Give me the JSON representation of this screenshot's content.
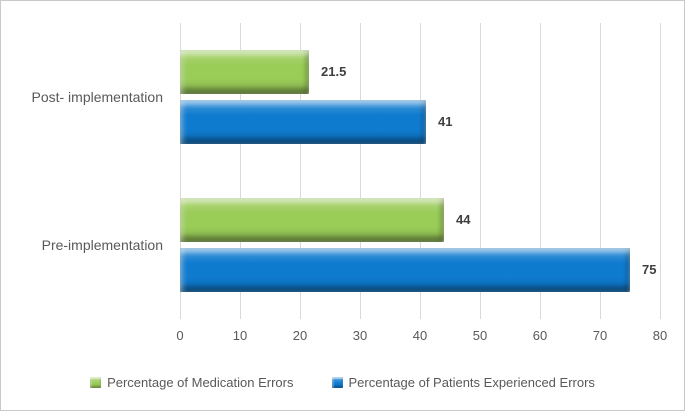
{
  "figure": {
    "background": "#ffffff",
    "border_color": "#c9c9c9"
  },
  "chart_data": {
    "type": "bar",
    "orientation": "horizontal",
    "title": "",
    "categories": [
      "Post- implementation",
      "Pre-implementation"
    ],
    "series": [
      {
        "name": "Percentage of Medication Errors",
        "color": "#9acc58",
        "values": [
          21.5,
          44
        ]
      },
      {
        "name": "Percentage of Patients Experienced Errors",
        "color": "#0f7bcf",
        "values": [
          41,
          75
        ]
      }
    ],
    "xlim": [
      0,
      80
    ],
    "xticks": [
      0,
      10,
      20,
      30,
      40,
      50,
      60,
      70,
      80
    ],
    "grid": "vertical",
    "gridline_color": "#d9d9d9",
    "axis_text_color": "#595959",
    "data_labels": true,
    "data_label_color": "#404040",
    "legend_position": "bottom"
  }
}
